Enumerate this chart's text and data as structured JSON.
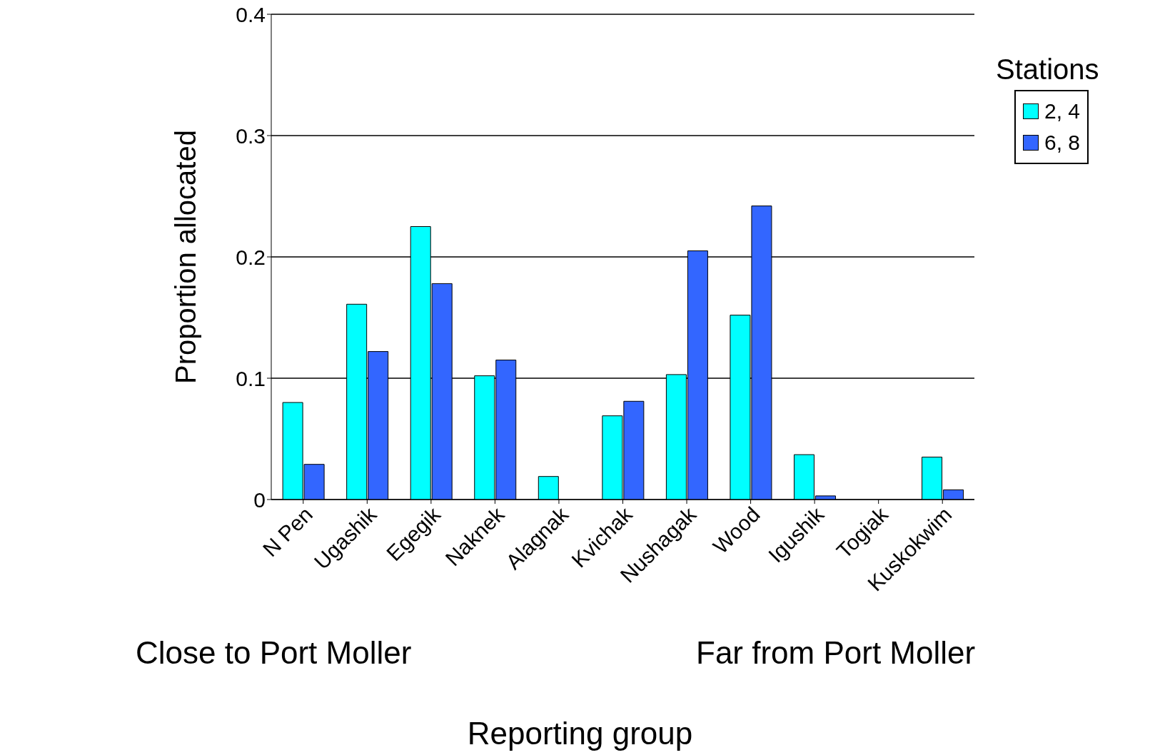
{
  "chart_data": {
    "type": "bar",
    "xlabel": "Reporting group",
    "ylabel": "Proportion allocated",
    "legend_title": "Stations",
    "categories": [
      "N Pen",
      "Ugashik",
      "Egegik",
      "Naknek",
      "Alagnak",
      "Kvichak",
      "Nushagak",
      "Wood",
      "Igushik",
      "Togiak",
      "Kuskokwim"
    ],
    "series": [
      {
        "name": "2, 4",
        "color": "#00ffff",
        "values": [
          0.08,
          0.161,
          0.225,
          0.102,
          0.019,
          0.069,
          0.103,
          0.152,
          0.037,
          0,
          0.035
        ]
      },
      {
        "name": "6, 8",
        "color": "#3366ff",
        "values": [
          0.029,
          0.122,
          0.178,
          0.115,
          0,
          0.081,
          0.205,
          0.242,
          0.003,
          0,
          0.008
        ]
      }
    ],
    "ylim": [
      0,
      0.4
    ],
    "yticks": [
      0,
      0.1,
      0.2,
      0.3,
      0.4
    ],
    "grid": "y",
    "legend": "top right",
    "annotations": [
      "Close to Port Moller",
      "Far from Port Moller"
    ]
  }
}
